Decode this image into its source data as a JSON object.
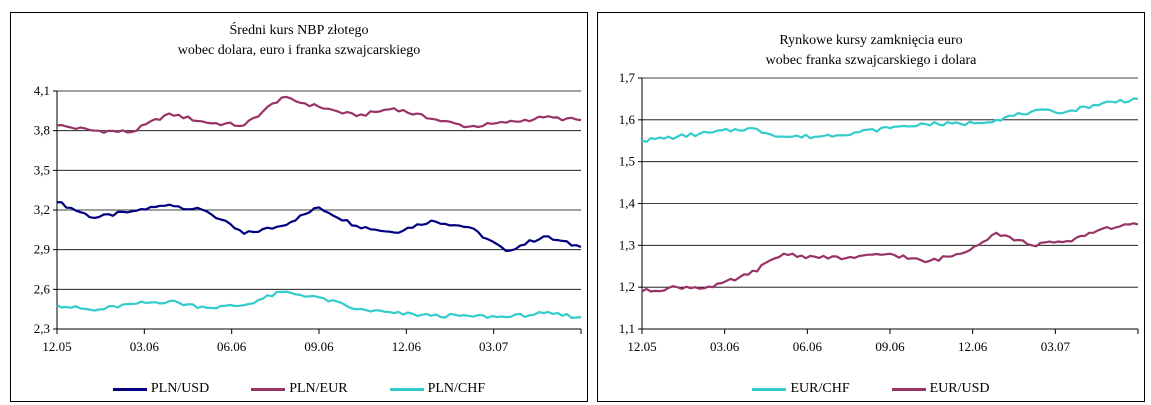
{
  "chart_data": [
    {
      "type": "line",
      "title": "Średni kurs NBP złotego",
      "subtitle": "wobec dolara, euro i franka szwajcarskiego",
      "x_tick_labels": [
        "12.05",
        "03.06",
        "06.06",
        "09.06",
        "12.06",
        "03.07"
      ],
      "y_tick_labels": [
        "2,3",
        "2,6",
        "2,9",
        "3,2",
        "3,5",
        "3,8",
        "4,1"
      ],
      "ylim": [
        2.3,
        4.1
      ],
      "grid": "horizontal",
      "legend_position": "bottom",
      "x_points": [
        0,
        6,
        12,
        18,
        24,
        30,
        36,
        42,
        48,
        54,
        60,
        66,
        72,
        78,
        84
      ],
      "series": [
        {
          "name": "PLN/USD",
          "color": "#000080",
          "values": [
            3.26,
            3.14,
            3.19,
            3.24,
            3.19,
            3.02,
            3.08,
            3.22,
            3.08,
            3.03,
            3.12,
            3.07,
            2.89,
            3.0,
            2.92
          ]
        },
        {
          "name": "PLN/EUR",
          "color": "#993366",
          "values": [
            3.84,
            3.8,
            3.79,
            3.93,
            3.86,
            3.84,
            4.05,
            3.98,
            3.91,
            3.97,
            3.89,
            3.83,
            3.86,
            3.9,
            3.88
          ]
        },
        {
          "name": "PLN/CHF",
          "color": "#33CCCC",
          "values": [
            2.48,
            2.44,
            2.49,
            2.51,
            2.46,
            2.48,
            2.58,
            2.54,
            2.45,
            2.42,
            2.4,
            2.4,
            2.39,
            2.42,
            2.39
          ]
        }
      ]
    },
    {
      "type": "line",
      "title": "Rynkowe kursy zamknięcia euro",
      "subtitle": "wobec franka szwajcarskiego i dolara",
      "x_tick_labels": [
        "12.05",
        "03.06",
        "06.06",
        "09.06",
        "12.06",
        "03.07"
      ],
      "y_tick_labels": [
        "1,1",
        "1,2",
        "1,3",
        "1,4",
        "1,5",
        "1,6",
        "1,7"
      ],
      "ylim": [
        1.1,
        1.7
      ],
      "grid": "horizontal",
      "legend_position": "bottom",
      "x_points": [
        0,
        6,
        12,
        18,
        24,
        30,
        36,
        42,
        48,
        54,
        60,
        66,
        72,
        78,
        84
      ],
      "series": [
        {
          "name": "EUR/CHF",
          "color": "#33CCCC",
          "values": [
            1.55,
            1.56,
            1.57,
            1.58,
            1.56,
            1.56,
            1.57,
            1.58,
            1.59,
            1.59,
            1.6,
            1.62,
            1.62,
            1.64,
            1.65
          ]
        },
        {
          "name": "EUR/USD",
          "color": "#993366",
          "values": [
            1.19,
            1.2,
            1.2,
            1.23,
            1.28,
            1.27,
            1.27,
            1.28,
            1.26,
            1.28,
            1.33,
            1.3,
            1.31,
            1.34,
            1.35
          ]
        }
      ]
    }
  ]
}
